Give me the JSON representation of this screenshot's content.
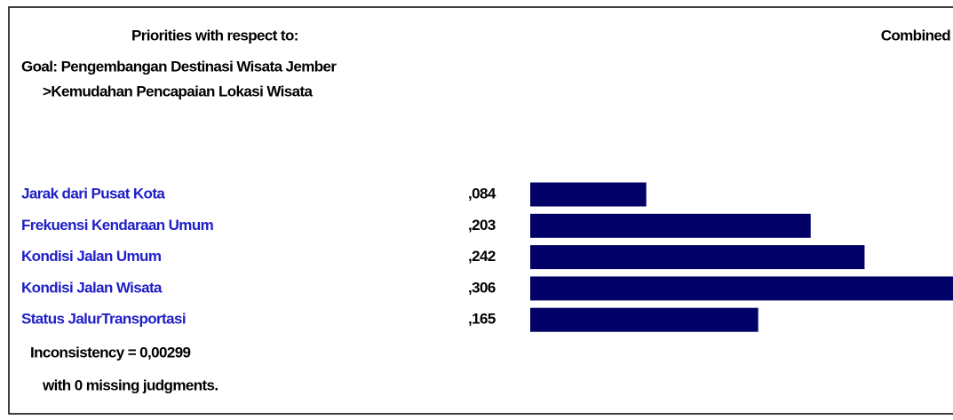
{
  "chart_data": {
    "type": "bar",
    "orientation": "horizontal",
    "header": "Priorities with respect to:",
    "column_header": "Combined",
    "goal": "Goal: Pengembangan Destinasi Wisata Jember",
    "subgoal": ">Kemudahan Pencapaian Lokasi Wisata",
    "categories": [
      "Jarak dari Pusat Kota",
      "Frekuensi Kendaraan Umum",
      "Kondisi Jalan Umum",
      "Kondisi Jalan Wisata",
      "Status JalurTransportasi"
    ],
    "values": [
      0.084,
      0.203,
      0.242,
      0.306,
      0.165
    ],
    "value_labels": [
      ",084",
      ",203",
      ",242",
      ",306",
      ",165"
    ],
    "color": "#000066",
    "label_color": "#2020c8",
    "inconsistency": "Inconsistency = 0,00299",
    "missing": "with 0  missing judgments."
  }
}
